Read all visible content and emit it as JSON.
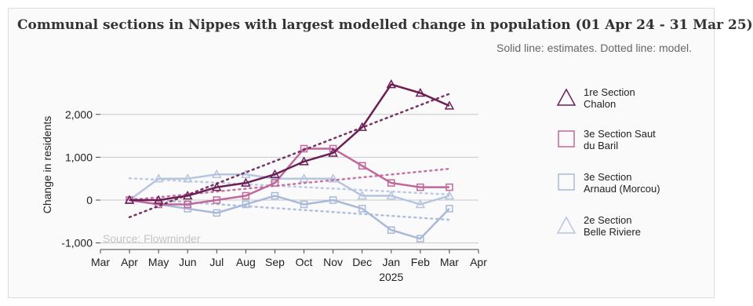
{
  "header": {
    "title": "Communal sections in Nippes with largest modelled change in population (01 Apr 24 - 31 Mar 25)",
    "subtitle": "Solid line: estimates. Dotted line: model."
  },
  "source": "Source: Flowminder",
  "chart_data": {
    "type": "line",
    "title": "Communal sections in Nippes with largest modelled change in population (01 Apr 24 - 31 Mar 25)",
    "subtitle": "Solid line: estimates. Dotted line: model.",
    "ylabel": "Change in residents",
    "xlabel": "",
    "x_ticks": [
      "Mar",
      "Apr",
      "May",
      "Jun",
      "Jul",
      "Aug",
      "Sep",
      "Oct",
      "Nov",
      "Dec",
      "Jan",
      "Feb",
      "Mar",
      "Apr"
    ],
    "x_year_label": "2025",
    "y_ticks": [
      -1000,
      0,
      1000,
      2000
    ],
    "y_tick_labels": [
      "-1,000",
      "0",
      "1,000",
      "2,000"
    ],
    "ylim": [
      -1150,
      2800
    ],
    "grid": "horizontal",
    "legend_position": "right",
    "x": [
      "2024-04",
      "2024-05",
      "2024-06",
      "2024-07",
      "2024-08",
      "2024-09",
      "2024-10",
      "2024-11",
      "2024-12",
      "2025-01",
      "2025-02",
      "2025-03"
    ],
    "series": [
      {
        "name": "1re Section Chalon",
        "legend_lines": [
          "1re Section",
          "Chalon"
        ],
        "marker": "triangle",
        "color": "#6b1f55",
        "values": [
          0,
          0,
          100,
          300,
          400,
          600,
          900,
          1100,
          1700,
          2700,
          2500,
          2200
        ],
        "model": [
          -400,
          2480
        ]
      },
      {
        "name": "3e Section Saut du Baril",
        "legend_lines": [
          "3e Section Saut",
          "du Baril"
        ],
        "marker": "square",
        "color": "#c0679b",
        "values": [
          0,
          -100,
          -100,
          0,
          100,
          400,
          1200,
          1200,
          800,
          400,
          300,
          300
        ],
        "model": [
          0,
          730
        ]
      },
      {
        "name": "3e Section Arnaud (Morcou)",
        "legend_lines": [
          "3e Section",
          "Arnaud (Morcou)"
        ],
        "marker": "square",
        "color": "#a9b9d9",
        "values": [
          0,
          -100,
          -200,
          -300,
          -100,
          100,
          -100,
          0,
          -200,
          -700,
          -900,
          -200
        ],
        "model": [
          40,
          -460
        ]
      },
      {
        "name": "2e Section Belle Riviere",
        "legend_lines": [
          "2e Section",
          "Belle Riviere"
        ],
        "marker": "triangle",
        "color": "#b7c5df",
        "values": [
          0,
          500,
          500,
          600,
          600,
          500,
          500,
          500,
          100,
          100,
          -100,
          100
        ],
        "model": [
          510,
          130
        ]
      }
    ]
  }
}
